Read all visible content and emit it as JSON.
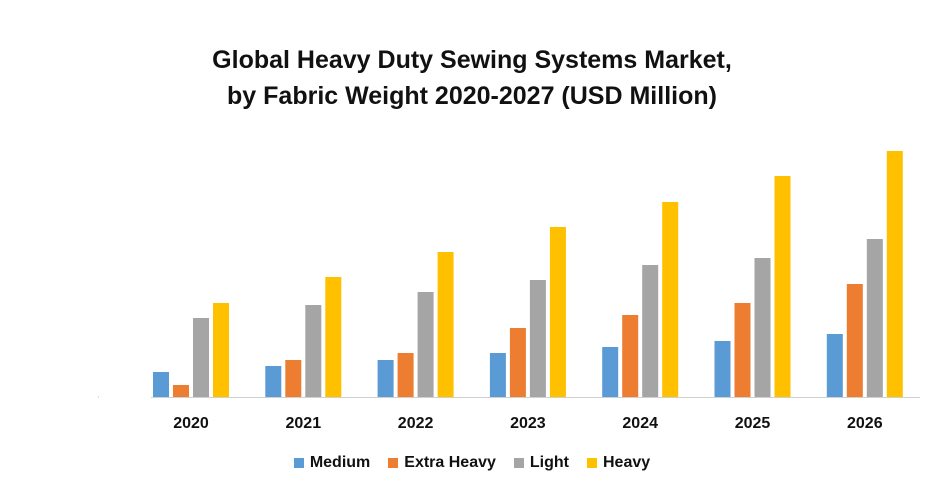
{
  "chart_data": {
    "type": "bar",
    "title": "Global Heavy Duty Sewing Systems Market,",
    "subtitle": "by Fabric Weight  2020-2027 (USD Million)",
    "xlabel": "",
    "ylabel": "",
    "categories": [
      "2020",
      "2021",
      "2022",
      "2023",
      "2024",
      "2025",
      "2026"
    ],
    "series": [
      {
        "name": "Medium",
        "color": "#5B9BD5",
        "values": [
          25,
          31,
          37,
          44,
          50,
          56,
          63
        ]
      },
      {
        "name": "Extra Heavy",
        "color": "#ED7D31",
        "values": [
          12,
          37,
          44,
          69,
          82,
          94,
          113
        ]
      },
      {
        "name": "Light",
        "color": "#A5A5A5",
        "values": [
          79,
          92,
          105,
          117,
          132,
          139,
          158
        ]
      },
      {
        "name": "Heavy",
        "color": "#FFC000",
        "values": [
          94,
          120,
          145,
          170,
          195,
          221,
          246
        ]
      }
    ],
    "ylim": [
      0,
      250
    ],
    "y_axis_visible": false,
    "grid": false,
    "legend_position": "bottom"
  }
}
